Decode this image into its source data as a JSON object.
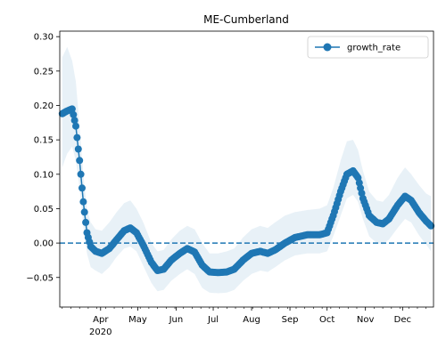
{
  "chart_data": {
    "type": "line",
    "title": "ME-Cumberland",
    "xlabel": "",
    "ylabel": "",
    "series": [
      {
        "name": "growth_rate",
        "color": "#1f77b4",
        "marker": "circle",
        "band_color": "#1f77b4",
        "keypoints": [
          [
            "2020-03-01",
            0.188
          ],
          [
            "2020-03-05",
            0.192
          ],
          [
            "2020-03-09",
            0.195
          ],
          [
            "2020-03-12",
            0.17
          ],
          [
            "2020-03-15",
            0.12
          ],
          [
            "2020-03-18",
            0.06
          ],
          [
            "2020-03-21",
            0.015
          ],
          [
            "2020-03-24",
            -0.005
          ],
          [
            "2020-03-28",
            -0.012
          ],
          [
            "2020-04-02",
            -0.015
          ],
          [
            "2020-04-08",
            -0.008
          ],
          [
            "2020-04-14",
            0.005
          ],
          [
            "2020-04-20",
            0.018
          ],
          [
            "2020-04-25",
            0.022
          ],
          [
            "2020-04-30",
            0.015
          ],
          [
            "2020-05-06",
            -0.005
          ],
          [
            "2020-05-12",
            -0.028
          ],
          [
            "2020-05-17",
            -0.04
          ],
          [
            "2020-05-22",
            -0.038
          ],
          [
            "2020-05-28",
            -0.025
          ],
          [
            "2020-06-04",
            -0.015
          ],
          [
            "2020-06-10",
            -0.008
          ],
          [
            "2020-06-16",
            -0.013
          ],
          [
            "2020-06-22",
            -0.032
          ],
          [
            "2020-06-28",
            -0.042
          ],
          [
            "2020-07-05",
            -0.043
          ],
          [
            "2020-07-12",
            -0.042
          ],
          [
            "2020-07-18",
            -0.038
          ],
          [
            "2020-07-25",
            -0.025
          ],
          [
            "2020-08-01",
            -0.015
          ],
          [
            "2020-08-08",
            -0.012
          ],
          [
            "2020-08-14",
            -0.015
          ],
          [
            "2020-08-20",
            -0.01
          ],
          [
            "2020-08-28",
            0.0
          ],
          [
            "2020-09-05",
            0.008
          ],
          [
            "2020-09-15",
            0.012
          ],
          [
            "2020-09-25",
            0.012
          ],
          [
            "2020-10-01",
            0.015
          ],
          [
            "2020-10-06",
            0.04
          ],
          [
            "2020-10-12",
            0.075
          ],
          [
            "2020-10-17",
            0.1
          ],
          [
            "2020-10-22",
            0.105
          ],
          [
            "2020-10-26",
            0.095
          ],
          [
            "2020-10-30",
            0.065
          ],
          [
            "2020-11-04",
            0.04
          ],
          [
            "2020-11-10",
            0.03
          ],
          [
            "2020-11-15",
            0.028
          ],
          [
            "2020-11-20",
            0.035
          ],
          [
            "2020-11-27",
            0.055
          ],
          [
            "2020-12-03",
            0.068
          ],
          [
            "2020-12-08",
            0.062
          ],
          [
            "2020-12-14",
            0.045
          ],
          [
            "2020-12-20",
            0.032
          ],
          [
            "2020-12-24",
            0.025
          ]
        ],
        "band": [
          [
            "2020-03-01",
            0.11,
            0.27
          ],
          [
            "2020-03-05",
            0.13,
            0.285
          ],
          [
            "2020-03-09",
            0.14,
            0.265
          ],
          [
            "2020-03-12",
            0.12,
            0.235
          ],
          [
            "2020-03-15",
            0.08,
            0.17
          ],
          [
            "2020-03-18",
            0.025,
            0.1
          ],
          [
            "2020-03-21",
            -0.015,
            0.05
          ],
          [
            "2020-03-24",
            -0.035,
            0.03
          ],
          [
            "2020-03-28",
            -0.04,
            0.02
          ],
          [
            "2020-04-02",
            -0.045,
            0.018
          ],
          [
            "2020-04-08",
            -0.035,
            0.03
          ],
          [
            "2020-04-14",
            -0.02,
            0.045
          ],
          [
            "2020-04-20",
            -0.008,
            0.058
          ],
          [
            "2020-04-25",
            -0.005,
            0.062
          ],
          [
            "2020-04-30",
            -0.012,
            0.05
          ],
          [
            "2020-05-06",
            -0.035,
            0.028
          ],
          [
            "2020-05-12",
            -0.058,
            0.0
          ],
          [
            "2020-05-17",
            -0.07,
            -0.012
          ],
          [
            "2020-05-22",
            -0.068,
            -0.01
          ],
          [
            "2020-05-28",
            -0.055,
            0.005
          ],
          [
            "2020-06-04",
            -0.045,
            0.018
          ],
          [
            "2020-06-10",
            -0.038,
            0.025
          ],
          [
            "2020-06-16",
            -0.045,
            0.02
          ],
          [
            "2020-06-22",
            -0.065,
            0.0
          ],
          [
            "2020-06-28",
            -0.072,
            -0.015
          ],
          [
            "2020-07-05",
            -0.073,
            -0.015
          ],
          [
            "2020-07-12",
            -0.072,
            -0.012
          ],
          [
            "2020-07-18",
            -0.068,
            -0.008
          ],
          [
            "2020-07-25",
            -0.055,
            0.008
          ],
          [
            "2020-08-01",
            -0.045,
            0.02
          ],
          [
            "2020-08-08",
            -0.04,
            0.025
          ],
          [
            "2020-08-14",
            -0.042,
            0.022
          ],
          [
            "2020-08-20",
            -0.035,
            0.03
          ],
          [
            "2020-08-28",
            -0.025,
            0.04
          ],
          [
            "2020-09-05",
            -0.018,
            0.045
          ],
          [
            "2020-09-15",
            -0.015,
            0.048
          ],
          [
            "2020-09-25",
            -0.015,
            0.05
          ],
          [
            "2020-10-01",
            -0.012,
            0.055
          ],
          [
            "2020-10-06",
            0.01,
            0.08
          ],
          [
            "2020-10-12",
            0.04,
            0.12
          ],
          [
            "2020-10-17",
            0.065,
            0.148
          ],
          [
            "2020-10-22",
            0.07,
            0.15
          ],
          [
            "2020-10-26",
            0.06,
            0.135
          ],
          [
            "2020-10-30",
            0.035,
            0.105
          ],
          [
            "2020-11-04",
            0.01,
            0.075
          ],
          [
            "2020-11-10",
            0.0,
            0.062
          ],
          [
            "2020-11-15",
            -0.002,
            0.06
          ],
          [
            "2020-11-20",
            0.005,
            0.07
          ],
          [
            "2020-11-27",
            0.022,
            0.095
          ],
          [
            "2020-12-03",
            0.035,
            0.11
          ],
          [
            "2020-12-08",
            0.03,
            0.1
          ],
          [
            "2020-12-14",
            0.012,
            0.085
          ],
          [
            "2020-12-20",
            -0.002,
            0.072
          ],
          [
            "2020-12-24",
            -0.012,
            0.068
          ]
        ]
      }
    ],
    "reference_lines": [
      {
        "axis": "y",
        "value": 0.0,
        "style": "dashed",
        "color": "#1f77b4"
      }
    ],
    "xaxis": {
      "type": "date",
      "range": [
        "2020-02-28",
        "2020-12-26"
      ],
      "ticks": [
        {
          "date": "2020-04-01",
          "label": "Apr",
          "sublabel": "2020"
        },
        {
          "date": "2020-05-01",
          "label": "May"
        },
        {
          "date": "2020-06-01",
          "label": "Jun"
        },
        {
          "date": "2020-07-01",
          "label": "Jul"
        },
        {
          "date": "2020-08-01",
          "label": "Aug"
        },
        {
          "date": "2020-09-01",
          "label": "Sep"
        },
        {
          "date": "2020-10-01",
          "label": "Oct"
        },
        {
          "date": "2020-11-01",
          "label": "Nov"
        },
        {
          "date": "2020-12-01",
          "label": "Dec"
        }
      ]
    },
    "yaxis": {
      "range": [
        -0.093,
        0.308
      ],
      "ticks": [
        -0.05,
        0.0,
        0.05,
        0.1,
        0.15,
        0.2,
        0.25,
        0.3
      ],
      "tick_labels": [
        "−0.05",
        "0.00",
        "0.05",
        "0.10",
        "0.15",
        "0.20",
        "0.25",
        "0.30"
      ]
    },
    "grid": false,
    "legend": {
      "position": "top-right",
      "entries": [
        "growth_rate"
      ]
    }
  }
}
